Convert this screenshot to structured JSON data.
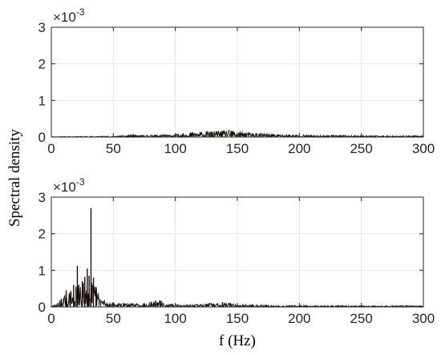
{
  "chart_data": [
    {
      "type": "line",
      "name": "top",
      "xlim": [
        0,
        300
      ],
      "ylim": [
        0,
        3
      ],
      "xticks": [
        "0",
        "50",
        "100",
        "150",
        "200",
        "250",
        "300"
      ],
      "yticks": [
        "0",
        "1",
        "2",
        "3"
      ],
      "exponent_base": "×10",
      "exponent_power": "-3",
      "grid": true,
      "line_color": "#1a0f0f",
      "envelope": [
        {
          "f": 0,
          "a": 0.01
        },
        {
          "f": 50,
          "a": 0.02
        },
        {
          "f": 65,
          "a": 0.05
        },
        {
          "f": 70,
          "a": 0.04
        },
        {
          "f": 100,
          "a": 0.06
        },
        {
          "f": 110,
          "a": 0.1
        },
        {
          "f": 125,
          "a": 0.12
        },
        {
          "f": 145,
          "a": 0.15
        },
        {
          "f": 160,
          "a": 0.1
        },
        {
          "f": 180,
          "a": 0.07
        },
        {
          "f": 200,
          "a": 0.05
        },
        {
          "f": 230,
          "a": 0.04
        },
        {
          "f": 260,
          "a": 0.03
        },
        {
          "f": 300,
          "a": 0.03
        }
      ],
      "peaks": [
        {
          "f": 66,
          "y": 0.08
        },
        {
          "f": 112,
          "y": 0.11
        },
        {
          "f": 128,
          "y": 0.14
        },
        {
          "f": 138,
          "y": 0.13
        },
        {
          "f": 145,
          "y": 0.17
        },
        {
          "f": 157,
          "y": 0.12
        },
        {
          "f": 178,
          "y": 0.09
        },
        {
          "f": 228,
          "y": 0.06
        },
        {
          "f": 295,
          "y": 0.04
        }
      ]
    },
    {
      "type": "line",
      "name": "bottom",
      "xlim": [
        0,
        300
      ],
      "ylim": [
        0,
        3
      ],
      "xticks": [
        "0",
        "50",
        "100",
        "150",
        "200",
        "250",
        "300"
      ],
      "yticks": [
        "0",
        "1",
        "2",
        "3"
      ],
      "exponent_base": "×10",
      "exponent_power": "-3",
      "grid": true,
      "line_color": "#1a0f0f",
      "envelope": [
        {
          "f": 0,
          "a": 0.02
        },
        {
          "f": 3,
          "a": 0.05
        },
        {
          "f": 6,
          "a": 0.12
        },
        {
          "f": 10,
          "a": 0.25
        },
        {
          "f": 15,
          "a": 0.35
        },
        {
          "f": 20,
          "a": 0.45
        },
        {
          "f": 25,
          "a": 0.55
        },
        {
          "f": 30,
          "a": 0.65
        },
        {
          "f": 35,
          "a": 0.5
        },
        {
          "f": 40,
          "a": 0.25
        },
        {
          "f": 45,
          "a": 0.12
        },
        {
          "f": 55,
          "a": 0.08
        },
        {
          "f": 70,
          "a": 0.08
        },
        {
          "f": 80,
          "a": 0.12
        },
        {
          "f": 88,
          "a": 0.14
        },
        {
          "f": 95,
          "a": 0.06
        },
        {
          "f": 110,
          "a": 0.05
        },
        {
          "f": 125,
          "a": 0.08
        },
        {
          "f": 140,
          "a": 0.1
        },
        {
          "f": 155,
          "a": 0.06
        },
        {
          "f": 175,
          "a": 0.04
        },
        {
          "f": 200,
          "a": 0.03
        },
        {
          "f": 250,
          "a": 0.03
        },
        {
          "f": 300,
          "a": 0.03
        }
      ],
      "peaks": [
        {
          "f": 8,
          "y": 0.2
        },
        {
          "f": 12,
          "y": 0.45
        },
        {
          "f": 18,
          "y": 0.6
        },
        {
          "f": 21,
          "y": 1.12
        },
        {
          "f": 25,
          "y": 0.7
        },
        {
          "f": 27,
          "y": 0.82
        },
        {
          "f": 29,
          "y": 1.05
        },
        {
          "f": 30.5,
          "y": 0.85
        },
        {
          "f": 32,
          "y": 2.7
        },
        {
          "f": 34,
          "y": 0.8
        },
        {
          "f": 36,
          "y": 0.55
        },
        {
          "f": 84,
          "y": 0.18
        },
        {
          "f": 88,
          "y": 0.17
        },
        {
          "f": 138,
          "y": 0.13
        }
      ]
    }
  ],
  "ylabel": "Spectral density",
  "xlabel": "f (Hz)"
}
